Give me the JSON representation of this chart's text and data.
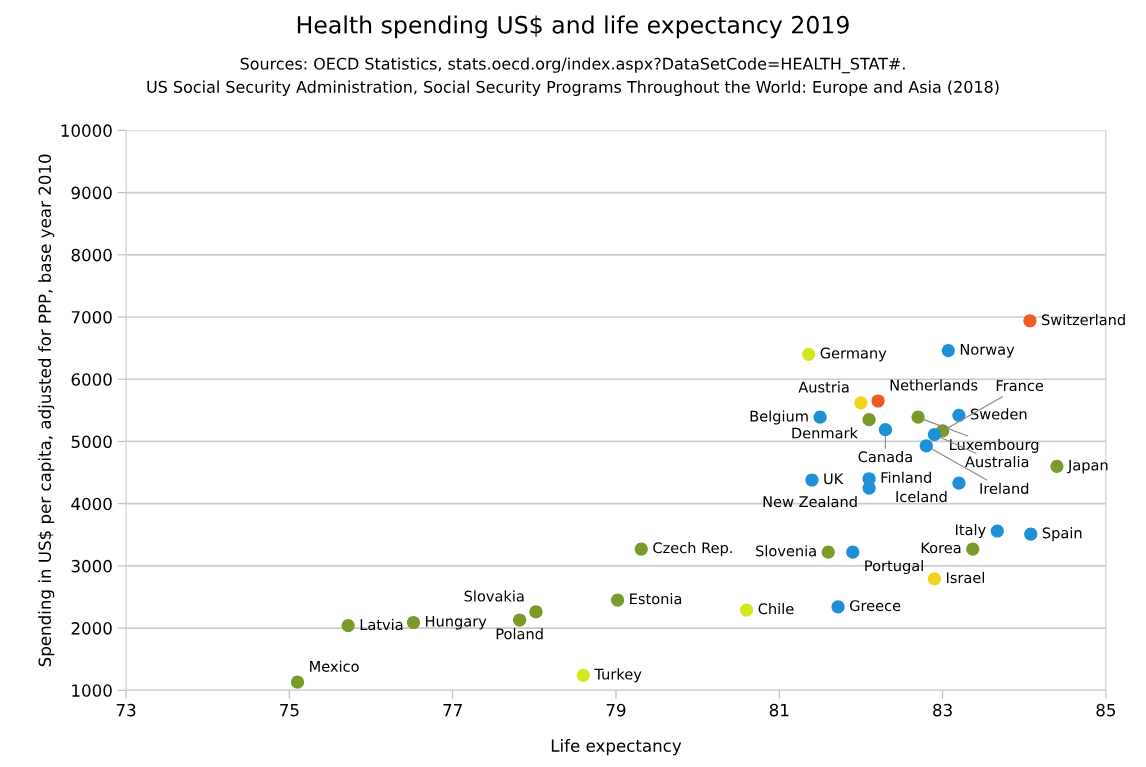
{
  "chart_data": {
    "type": "scatter",
    "title": "Health spending US$ and life expectancy 2019",
    "subtitle": "Sources: OECD Statistics, stats.oecd.org/index.aspx?DataSetCode=HEALTH_STAT#.\nUS Social Security Administration, Social Security Programs Throughout the World: Europe and Asia (2018)",
    "xlabel": "Life expectancy",
    "ylabel": "Spending in US$ per capita, adjusted for PPP, base year 2010",
    "x": [
      84.07,
      83.07,
      81.36,
      82.21,
      82.0,
      81.5,
      82.1,
      82.7,
      83.2,
      82.3,
      83.0,
      82.9,
      82.8,
      84.4,
      81.4,
      82.1,
      82.1,
      83.2,
      83.67,
      84.08,
      83.37,
      79.31,
      81.6,
      81.9,
      79.02,
      80.6,
      81.72,
      82.9,
      75.72,
      76.52,
      77.82,
      78.02,
      78.6,
      75.1
    ],
    "values": [
      6940,
      6460,
      6400,
      5650,
      5620,
      5390,
      5350,
      5390,
      5420,
      5190,
      5170,
      5110,
      4930,
      4600,
      4380,
      4400,
      4250,
      4330,
      3560,
      3510,
      3270,
      3270,
      3220,
      3220,
      2450,
      2290,
      2340,
      2790,
      2040,
      2090,
      2130,
      2260,
      1240,
      1130
    ],
    "colors": [
      "#f05a24",
      "#1e90d8",
      "#d4e61e",
      "#f05a24",
      "#f5d21e",
      "#1e90d8",
      "#7a9a2a",
      "#7a9a2a",
      "#1e90d8",
      "#1e90d8",
      "#7a9a2a",
      "#1e90d8",
      "#1e90d8",
      "#7a9a2a",
      "#1e90d8",
      "#1e90d8",
      "#1e90d8",
      "#1e90d8",
      "#1e90d8",
      "#1e90d8",
      "#7a9a2a",
      "#7a9a2a",
      "#7a9a2a",
      "#1e90d8",
      "#7a9a2a",
      "#d4e61e",
      "#1e90d8",
      "#f5d21e",
      "#7a9a2a",
      "#7a9a2a",
      "#7a9a2a",
      "#7a9a2a",
      "#d4e61e",
      "#7a9a2a"
    ],
    "annotations": [
      {
        "text": "Switzerland",
        "x": 84.07,
        "y": 6935
      },
      {
        "text": "Norway",
        "x": 83.07,
        "y": 6460
      },
      {
        "text": "Germany",
        "x": 81.36,
        "y": 6400
      },
      {
        "text": "Netherlands",
        "x": 82.21,
        "y": 5647
      },
      {
        "text": "Austria",
        "x": 82.0,
        "y": 5615
      },
      {
        "text": "Belgium",
        "x": 81.5,
        "y": 5386
      },
      {
        "text": "Denmark",
        "x": 82.1,
        "y": 5353
      },
      {
        "text": "Luxembourg",
        "x": 82.7,
        "y": 5386
      },
      {
        "text": "Sweden",
        "x": 83.2,
        "y": 5420
      },
      {
        "text": "Canada",
        "x": 82.3,
        "y": 5190
      },
      {
        "text": "France",
        "x": 83.0,
        "y": 5170
      },
      {
        "text": "Australia",
        "x": 82.9,
        "y": 5110
      },
      {
        "text": "Ireland",
        "x": 82.8,
        "y": 4930
      },
      {
        "text": "Japan",
        "x": 84.4,
        "y": 4600
      },
      {
        "text": "UK",
        "x": 81.4,
        "y": 4380
      },
      {
        "text": "Finland",
        "x": 82.1,
        "y": 4400
      },
      {
        "text": "New Zealand",
        "x": 82.1,
        "y": 4250
      },
      {
        "text": "Iceland",
        "x": 83.2,
        "y": 4330
      },
      {
        "text": "Italy",
        "x": 83.67,
        "y": 3560
      },
      {
        "text": "Spain",
        "x": 84.08,
        "y": 3510
      },
      {
        "text": "Korea",
        "x": 83.37,
        "y": 3270
      },
      {
        "text": "Czech Rep.",
        "x": 79.31,
        "y": 3270
      },
      {
        "text": "Slovenia",
        "x": 81.6,
        "y": 3220
      },
      {
        "text": "Portugal",
        "x": 81.9,
        "y": 3220
      },
      {
        "text": "Estonia",
        "x": 79.02,
        "y": 2450
      },
      {
        "text": "Chile",
        "x": 80.6,
        "y": 2290
      },
      {
        "text": "Greece",
        "x": 81.72,
        "y": 2340
      },
      {
        "text": "Israel",
        "x": 82.9,
        "y": 2790
      },
      {
        "text": "Latvia",
        "x": 75.72,
        "y": 2035
      },
      {
        "text": "Hungary",
        "x": 76.52,
        "y": 2090
      },
      {
        "text": "Poland",
        "x": 77.82,
        "y": 2125
      },
      {
        "text": "Slovakia",
        "x": 78.02,
        "y": 2255
      },
      {
        "text": "Turkey",
        "x": 78.6,
        "y": 1240
      },
      {
        "text": "Mexico",
        "x": 75.1,
        "y": 1125
      }
    ],
    "xlim": [
      73,
      85
    ],
    "xticks": [
      73,
      75,
      77,
      79,
      81,
      83,
      85
    ],
    "ylim": [
      1000,
      10000
    ],
    "yticks": [
      1000,
      2000,
      3000,
      4000,
      5000,
      6000,
      7000,
      8000,
      9000,
      10000
    ],
    "grid": "y",
    "marker": "circle",
    "legend": false
  }
}
